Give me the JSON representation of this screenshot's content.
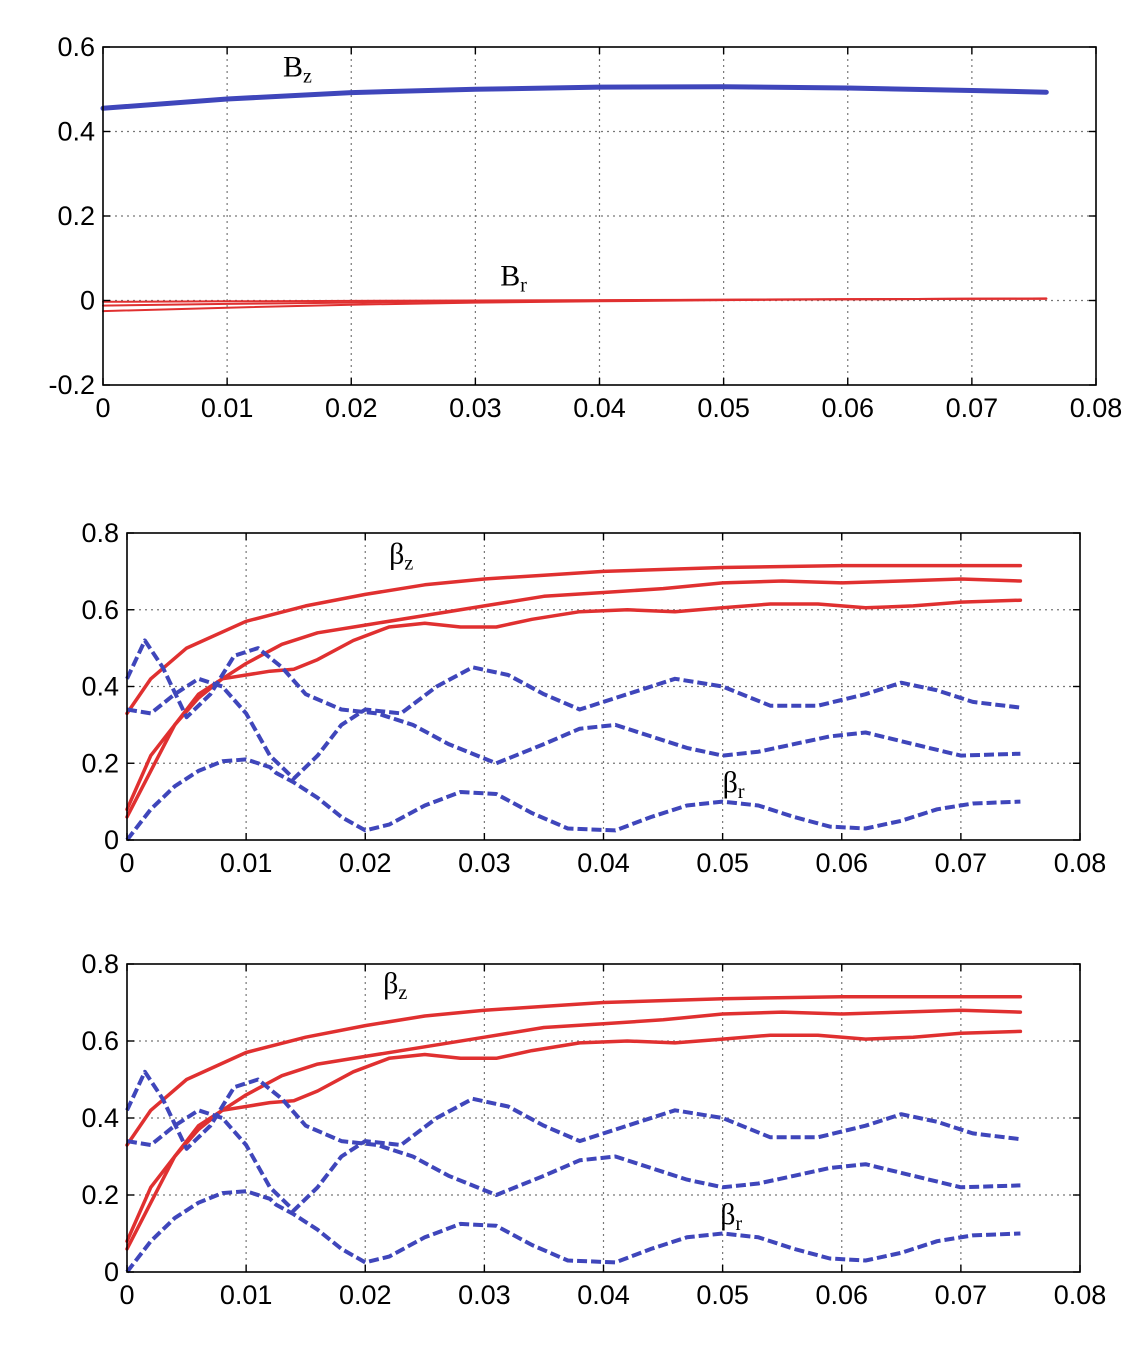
{
  "colors": {
    "red": "#e03030",
    "blue": "#3f46bb"
  },
  "chart_data": [
    {
      "type": "line",
      "title": "",
      "xlabel": "",
      "ylabel": "",
      "xlim": [
        0,
        0.08
      ],
      "ylim": [
        -0.2,
        0.6
      ],
      "grid": true,
      "xticks": [
        "0",
        "0.01",
        "0.02",
        "0.03",
        "0.04",
        "0.05",
        "0.06",
        "0.07",
        "0.08"
      ],
      "yticks": [
        "-0.2",
        "0",
        "0.2",
        "0.4",
        "0.6"
      ],
      "annotations": [
        {
          "base": "B",
          "sub": "z",
          "x": 0.0145,
          "y": 0.53
        },
        {
          "base": "B",
          "sub": "r",
          "x": 0.032,
          "y": 0.035
        }
      ],
      "series": [
        {
          "color": "blue",
          "dash": false,
          "width": 5,
          "x": [
            0,
            0.01,
            0.02,
            0.03,
            0.04,
            0.05,
            0.06,
            0.07,
            0.076
          ],
          "y": [
            0.455,
            0.477,
            0.492,
            0.5,
            0.505,
            0.506,
            0.503,
            0.497,
            0.493
          ]
        },
        {
          "color": "red",
          "dash": false,
          "width": 2,
          "x": [
            0,
            0.01,
            0.02,
            0.03,
            0.04,
            0.05,
            0.06,
            0.07,
            0.076
          ],
          "y": [
            -0.003,
            -0.002,
            -0.001,
            0,
            0.001,
            0.002,
            0.003,
            0.004,
            0.004
          ]
        },
        {
          "color": "red",
          "dash": false,
          "width": 2,
          "x": [
            0,
            0.01,
            0.02,
            0.03,
            0.04,
            0.05,
            0.06,
            0.07,
            0.076
          ],
          "y": [
            -0.012,
            -0.008,
            -0.005,
            -0.002,
            0,
            0.002,
            0.003,
            0.004,
            0.004
          ]
        },
        {
          "color": "red",
          "dash": false,
          "width": 2,
          "x": [
            0,
            0.01,
            0.02,
            0.03,
            0.04,
            0.05,
            0.06,
            0.07,
            0.076
          ],
          "y": [
            -0.025,
            -0.017,
            -0.01,
            -0.005,
            -0.002,
            0.001,
            0.003,
            0.004,
            0.005
          ]
        }
      ]
    },
    {
      "type": "line",
      "title": "",
      "xlabel": "",
      "ylabel": "",
      "xlim": [
        0,
        0.08
      ],
      "ylim": [
        0,
        0.8
      ],
      "grid": true,
      "xticks": [
        "0",
        "0.01",
        "0.02",
        "0.03",
        "0.04",
        "0.05",
        "0.06",
        "0.07",
        "0.08"
      ],
      "yticks": [
        "0",
        "0.2",
        "0.4",
        "0.6",
        "0.8"
      ],
      "annotations": [
        {
          "base": "β",
          "sub": "z",
          "x": 0.022,
          "y": 0.72
        },
        {
          "base": "β",
          "sub": "r",
          "x": 0.05,
          "y": 0.125
        }
      ],
      "series": [
        {
          "color": "red",
          "dash": false,
          "width": 3.5,
          "x": [
            0,
            0.002,
            0.005,
            0.01,
            0.015,
            0.02,
            0.025,
            0.03,
            0.035,
            0.04,
            0.05,
            0.06,
            0.07,
            0.075
          ],
          "y": [
            0.33,
            0.42,
            0.5,
            0.57,
            0.61,
            0.64,
            0.665,
            0.68,
            0.69,
            0.7,
            0.71,
            0.715,
            0.715,
            0.715
          ]
        },
        {
          "color": "red",
          "dash": false,
          "width": 3.5,
          "x": [
            0,
            0.002,
            0.004,
            0.006,
            0.008,
            0.01,
            0.013,
            0.016,
            0.02,
            0.025,
            0.03,
            0.035,
            0.04,
            0.045,
            0.05,
            0.055,
            0.06,
            0.065,
            0.07,
            0.075
          ],
          "y": [
            0.08,
            0.22,
            0.3,
            0.37,
            0.42,
            0.46,
            0.51,
            0.54,
            0.56,
            0.585,
            0.61,
            0.635,
            0.645,
            0.655,
            0.67,
            0.675,
            0.67,
            0.675,
            0.68,
            0.675
          ]
        },
        {
          "color": "red",
          "dash": false,
          "width": 3.5,
          "x": [
            0,
            0.002,
            0.004,
            0.006,
            0.008,
            0.01,
            0.012,
            0.014,
            0.016,
            0.019,
            0.022,
            0.025,
            0.028,
            0.031,
            0.034,
            0.038,
            0.042,
            0.046,
            0.05,
            0.054,
            0.058,
            0.062,
            0.066,
            0.07,
            0.075
          ],
          "y": [
            0.06,
            0.18,
            0.3,
            0.38,
            0.42,
            0.43,
            0.44,
            0.445,
            0.47,
            0.52,
            0.555,
            0.565,
            0.555,
            0.555,
            0.575,
            0.595,
            0.6,
            0.595,
            0.605,
            0.615,
            0.615,
            0.605,
            0.61,
            0.62,
            0.625
          ]
        },
        {
          "color": "blue",
          "dash": true,
          "width": 4,
          "x": [
            0,
            0.002,
            0.004,
            0.006,
            0.008,
            0.01,
            0.012,
            0.0125,
            0.014,
            0.016,
            0.018,
            0.02,
            0.022,
            0.025,
            0.028,
            0.031,
            0.034,
            0.037,
            0.041,
            0.044,
            0.047,
            0.05,
            0.053,
            0.056,
            0.059,
            0.062,
            0.065,
            0.068,
            0.071,
            0.075
          ],
          "y": [
            0.0,
            0.08,
            0.14,
            0.18,
            0.205,
            0.21,
            0.19,
            0.175,
            0.15,
            0.11,
            0.06,
            0.025,
            0.04,
            0.09,
            0.125,
            0.12,
            0.07,
            0.03,
            0.025,
            0.06,
            0.09,
            0.1,
            0.09,
            0.06,
            0.035,
            0.03,
            0.05,
            0.08,
            0.095,
            0.1
          ]
        },
        {
          "color": "blue",
          "dash": true,
          "width": 4,
          "x": [
            0,
            0.0015,
            0.003,
            0.005,
            0.007,
            0.009,
            0.011,
            0.013,
            0.015,
            0.018,
            0.021,
            0.024,
            0.027,
            0.031,
            0.035,
            0.038,
            0.041,
            0.044,
            0.047,
            0.05,
            0.053,
            0.056,
            0.059,
            0.062,
            0.066,
            0.07,
            0.075
          ],
          "y": [
            0.42,
            0.52,
            0.45,
            0.32,
            0.38,
            0.48,
            0.5,
            0.45,
            0.38,
            0.34,
            0.33,
            0.3,
            0.25,
            0.2,
            0.25,
            0.29,
            0.3,
            0.27,
            0.24,
            0.22,
            0.23,
            0.25,
            0.27,
            0.28,
            0.25,
            0.22,
            0.225
          ]
        },
        {
          "color": "blue",
          "dash": true,
          "width": 4,
          "x": [
            0,
            0.002,
            0.004,
            0.006,
            0.008,
            0.01,
            0.012,
            0.014,
            0.016,
            0.018,
            0.02,
            0.023,
            0.026,
            0.029,
            0.032,
            0.035,
            0.038,
            0.042,
            0.046,
            0.05,
            0.054,
            0.058,
            0.062,
            0.065,
            0.068,
            0.071,
            0.075
          ],
          "y": [
            0.34,
            0.33,
            0.38,
            0.42,
            0.4,
            0.33,
            0.22,
            0.16,
            0.22,
            0.3,
            0.34,
            0.33,
            0.4,
            0.45,
            0.43,
            0.38,
            0.34,
            0.38,
            0.42,
            0.4,
            0.35,
            0.35,
            0.38,
            0.41,
            0.39,
            0.36,
            0.345
          ]
        }
      ]
    },
    {
      "type": "line",
      "title": "",
      "xlabel": "",
      "ylabel": "",
      "xlim": [
        0,
        0.08
      ],
      "ylim": [
        0,
        0.8
      ],
      "grid": true,
      "xticks": [
        "0",
        "0.01",
        "0.02",
        "0.03",
        "0.04",
        "0.05",
        "0.06",
        "0.07",
        "0.08"
      ],
      "yticks": [
        "0",
        "0.2",
        "0.4",
        "0.6",
        "0.8"
      ],
      "annotations": [
        {
          "base": "β",
          "sub": "z",
          "x": 0.0215,
          "y": 0.725
        },
        {
          "base": "β",
          "sub": "r",
          "x": 0.0498,
          "y": 0.125
        }
      ],
      "series": [
        {
          "color": "red",
          "dash": false,
          "width": 3.5,
          "x": [
            0,
            0.002,
            0.005,
            0.01,
            0.015,
            0.02,
            0.025,
            0.03,
            0.035,
            0.04,
            0.05,
            0.06,
            0.07,
            0.075
          ],
          "y": [
            0.33,
            0.42,
            0.5,
            0.57,
            0.61,
            0.64,
            0.665,
            0.68,
            0.69,
            0.7,
            0.71,
            0.715,
            0.715,
            0.715
          ]
        },
        {
          "color": "red",
          "dash": false,
          "width": 3.5,
          "x": [
            0,
            0.002,
            0.004,
            0.006,
            0.008,
            0.01,
            0.013,
            0.016,
            0.02,
            0.025,
            0.03,
            0.035,
            0.04,
            0.045,
            0.05,
            0.055,
            0.06,
            0.065,
            0.07,
            0.075
          ],
          "y": [
            0.08,
            0.22,
            0.3,
            0.37,
            0.42,
            0.46,
            0.51,
            0.54,
            0.56,
            0.585,
            0.61,
            0.635,
            0.645,
            0.655,
            0.67,
            0.675,
            0.67,
            0.675,
            0.68,
            0.675
          ]
        },
        {
          "color": "red",
          "dash": false,
          "width": 3.5,
          "x": [
            0,
            0.002,
            0.004,
            0.006,
            0.008,
            0.01,
            0.012,
            0.014,
            0.016,
            0.019,
            0.022,
            0.025,
            0.028,
            0.031,
            0.034,
            0.038,
            0.042,
            0.046,
            0.05,
            0.054,
            0.058,
            0.062,
            0.066,
            0.07,
            0.075
          ],
          "y": [
            0.06,
            0.18,
            0.3,
            0.38,
            0.42,
            0.43,
            0.44,
            0.445,
            0.47,
            0.52,
            0.555,
            0.565,
            0.555,
            0.555,
            0.575,
            0.595,
            0.6,
            0.595,
            0.605,
            0.615,
            0.615,
            0.605,
            0.61,
            0.62,
            0.625
          ]
        },
        {
          "color": "blue",
          "dash": true,
          "width": 4,
          "x": [
            0,
            0.002,
            0.004,
            0.006,
            0.008,
            0.01,
            0.012,
            0.0125,
            0.014,
            0.016,
            0.018,
            0.02,
            0.022,
            0.025,
            0.028,
            0.031,
            0.034,
            0.037,
            0.041,
            0.044,
            0.047,
            0.05,
            0.053,
            0.056,
            0.059,
            0.062,
            0.065,
            0.068,
            0.071,
            0.075
          ],
          "y": [
            0.0,
            0.08,
            0.14,
            0.18,
            0.205,
            0.21,
            0.19,
            0.175,
            0.15,
            0.11,
            0.06,
            0.025,
            0.04,
            0.09,
            0.125,
            0.12,
            0.07,
            0.03,
            0.025,
            0.06,
            0.09,
            0.1,
            0.09,
            0.06,
            0.035,
            0.03,
            0.05,
            0.08,
            0.095,
            0.1
          ]
        },
        {
          "color": "blue",
          "dash": true,
          "width": 4,
          "x": [
            0,
            0.0015,
            0.003,
            0.005,
            0.007,
            0.009,
            0.011,
            0.013,
            0.015,
            0.018,
            0.021,
            0.024,
            0.027,
            0.031,
            0.035,
            0.038,
            0.041,
            0.044,
            0.047,
            0.05,
            0.053,
            0.056,
            0.059,
            0.062,
            0.066,
            0.07,
            0.075
          ],
          "y": [
            0.42,
            0.52,
            0.45,
            0.32,
            0.38,
            0.48,
            0.5,
            0.45,
            0.38,
            0.34,
            0.33,
            0.3,
            0.25,
            0.2,
            0.25,
            0.29,
            0.3,
            0.27,
            0.24,
            0.22,
            0.23,
            0.25,
            0.27,
            0.28,
            0.25,
            0.22,
            0.225
          ]
        },
        {
          "color": "blue",
          "dash": true,
          "width": 4,
          "x": [
            0,
            0.002,
            0.004,
            0.006,
            0.008,
            0.01,
            0.012,
            0.014,
            0.016,
            0.018,
            0.02,
            0.023,
            0.026,
            0.029,
            0.032,
            0.035,
            0.038,
            0.042,
            0.046,
            0.05,
            0.054,
            0.058,
            0.062,
            0.065,
            0.068,
            0.071,
            0.075
          ],
          "y": [
            0.34,
            0.33,
            0.38,
            0.42,
            0.4,
            0.33,
            0.22,
            0.16,
            0.22,
            0.3,
            0.34,
            0.33,
            0.4,
            0.45,
            0.43,
            0.38,
            0.34,
            0.38,
            0.42,
            0.4,
            0.35,
            0.35,
            0.38,
            0.41,
            0.39,
            0.36,
            0.345
          ]
        }
      ]
    }
  ]
}
